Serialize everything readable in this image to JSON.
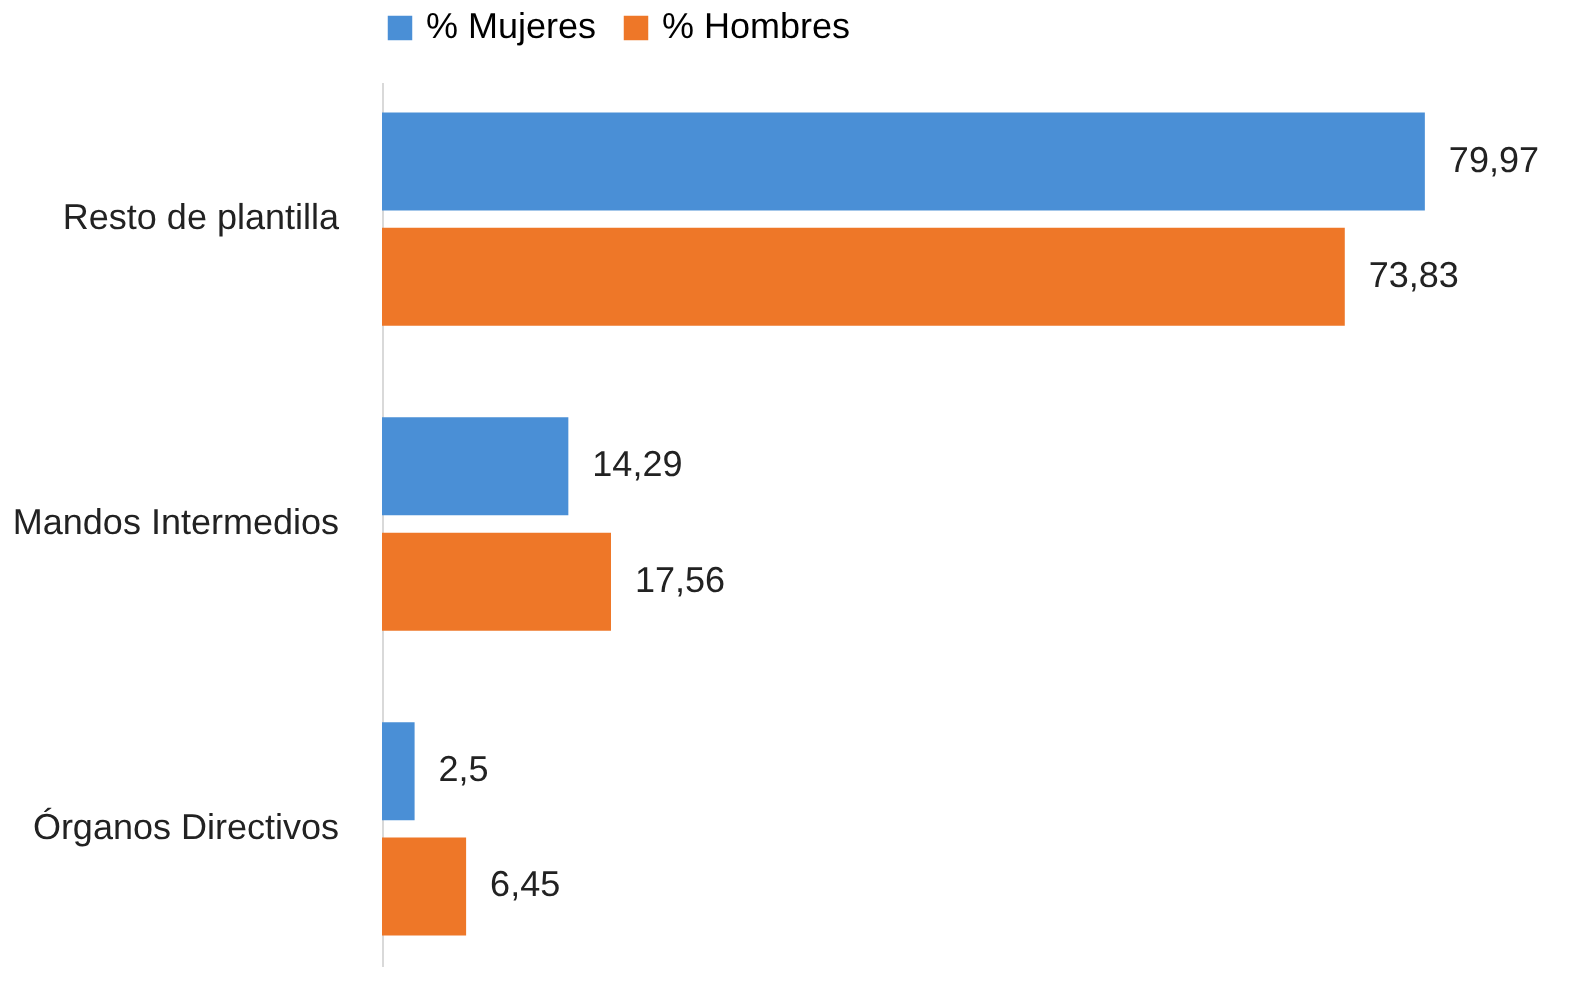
{
  "chart_data": {
    "type": "bar",
    "orientation": "horizontal",
    "categories": [
      "Resto de plantilla",
      "Mandos Intermedios",
      "Órganos Directivos"
    ],
    "series": [
      {
        "name": "% Mujeres",
        "color": "#4a8fd6",
        "values": [
          79.97,
          14.29,
          2.5
        ],
        "value_labels": [
          "79,97",
          "14,29",
          "2,5"
        ]
      },
      {
        "name": "% Hombres",
        "color": "#ee7728",
        "values": [
          73.83,
          17.56,
          6.45
        ],
        "value_labels": [
          "73,83",
          "17,56",
          "6,45"
        ]
      }
    ],
    "legend": "top",
    "tick_labels": "y",
    "grid": false
  }
}
